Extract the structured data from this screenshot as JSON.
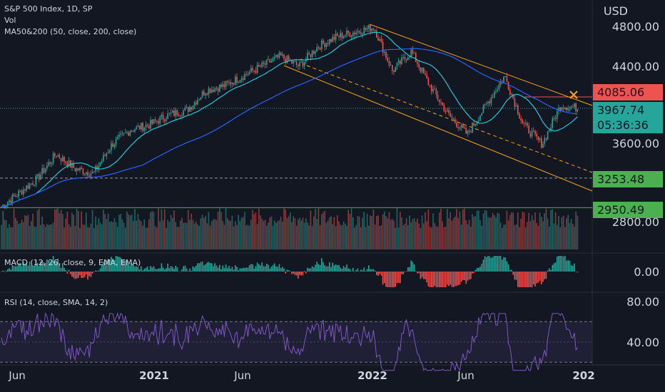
{
  "legend": {
    "symbol": "S&P 500 Index, 1D, SP",
    "volume": "Vol",
    "ma": "MA50&200 (50, close, 200, close)",
    "macd": "MACD (12, 26, close, 9, EMA, EMA)",
    "rsi": "RSI (14, close, SMA, 14, 2)"
  },
  "currency": "USD",
  "price_axis": [
    "4800.00",
    "4400.00",
    "3600.00",
    "2800.00"
  ],
  "price_tags": [
    {
      "text": "4085.06",
      "color": "#ef5350"
    },
    {
      "text": "3967.74",
      "color": "#26a69a"
    },
    {
      "text": "05:36:36",
      "color": "#26a69a"
    },
    {
      "text": "3253.48",
      "color": "#4caf50"
    },
    {
      "text": "2950.49",
      "color": "#4caf50"
    }
  ],
  "macd_axis": [
    "0.00"
  ],
  "rsi_axis": [
    "80.00",
    "40.00"
  ],
  "time_axis": [
    "Jun",
    "2021",
    "Jun",
    "2022",
    "Jun",
    "202"
  ],
  "colors": {
    "up": "#26a69a",
    "down": "#ef5350",
    "ma50": "#26c6da",
    "ma200": "#2962ff",
    "channel": "#f7a21b",
    "rsi": "#7e57c2"
  },
  "chart_data": {
    "type": "candlestick",
    "title": "S&P 500 Index, 1D, SP",
    "price_range": [
      2800,
      4900
    ],
    "points": [
      [
        "2020-05",
        2950
      ],
      [
        "2020-06",
        3100
      ],
      [
        "2020-07",
        3250
      ],
      [
        "2020-08",
        3500
      ],
      [
        "2020-09",
        3350
      ],
      [
        "2020-10",
        3300
      ],
      [
        "2020-11",
        3600
      ],
      [
        "2020-12",
        3750
      ],
      [
        "2021-01",
        3800
      ],
      [
        "2021-02",
        3900
      ],
      [
        "2021-03",
        3950
      ],
      [
        "2021-04",
        4150
      ],
      [
        "2021-05",
        4200
      ],
      [
        "2021-06",
        4300
      ],
      [
        "2021-07",
        4400
      ],
      [
        "2021-08",
        4500
      ],
      [
        "2021-09",
        4400
      ],
      [
        "2021-10",
        4600
      ],
      [
        "2021-11",
        4700
      ],
      [
        "2022-01",
        4800
      ],
      [
        "2022-02",
        4350
      ],
      [
        "2022-03",
        4550
      ],
      [
        "2022-04",
        4200
      ],
      [
        "2022-05",
        3900
      ],
      [
        "2022-06",
        3700
      ],
      [
        "2022-07",
        4000
      ],
      [
        "2022-08",
        4300
      ],
      [
        "2022-09",
        3800
      ],
      [
        "2022-10",
        3600
      ],
      [
        "2022-11",
        4000
      ],
      [
        "2022-12",
        3968
      ]
    ],
    "horizontal_levels": [
      4085.06,
      3253.48,
      2950.49
    ],
    "last_price": 3967.74,
    "indicators": [
      "Vol",
      "MA50&200",
      "MACD",
      "RSI"
    ]
  }
}
